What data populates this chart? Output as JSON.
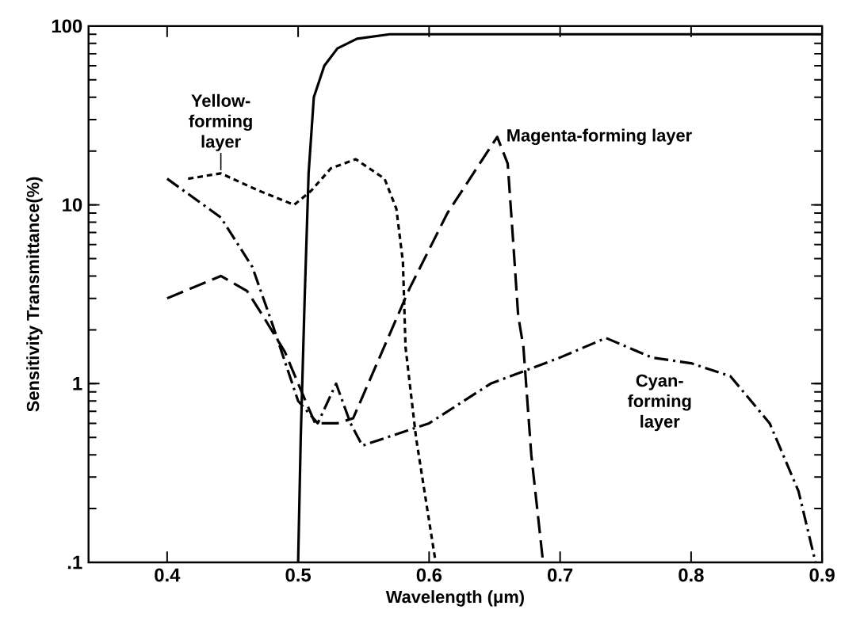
{
  "chart_data": {
    "type": "line",
    "xlabel": "Wavelength (μm)",
    "ylabel": "Sensitivity Transmittance(%)",
    "log": "y",
    "xlim": [
      0.34,
      0.9
    ],
    "ylim": [
      0.1,
      100
    ],
    "xticks": [
      0.4,
      0.5,
      0.6,
      0.7,
      0.8,
      0.9
    ],
    "yticks": [
      {
        "value": 0.1,
        "label": ".1"
      },
      1,
      10,
      100
    ],
    "grid": false,
    "legend": false,
    "marker": "none",
    "series": [
      {
        "color": "#000000",
        "line_style": "solid",
        "x": [
          0.5,
          0.502,
          0.505,
          0.508,
          0.512,
          0.52,
          0.53,
          0.545,
          0.57,
          0.6,
          0.9
        ],
        "values": [
          0.1,
          0.5,
          3,
          15,
          40,
          60,
          75,
          85,
          90,
          90,
          90
        ]
      },
      {
        "name": "Yellow-forming layer",
        "color": "#000000",
        "line_style": "dashed",
        "x": [
          0.416,
          0.441,
          0.47,
          0.497,
          0.51,
          0.525,
          0.544,
          0.566,
          0.575,
          0.58,
          0.582,
          0.59,
          0.599,
          0.605
        ],
        "values": [
          14,
          15,
          12,
          10,
          12,
          16,
          18,
          14,
          9.5,
          4.8,
          1.6,
          0.5,
          0.19,
          0.1
        ]
      },
      {
        "name": "Magenta-forming layer",
        "color": "#000000",
        "line_style": "longdashed",
        "x": [
          0.4,
          0.441,
          0.461,
          0.473,
          0.49,
          0.5,
          0.513,
          0.53,
          0.542,
          0.585,
          0.614,
          0.652,
          0.66,
          0.664,
          0.668,
          0.672,
          0.678,
          0.687
        ],
        "values": [
          3,
          4,
          3.3,
          2.4,
          1.5,
          1.0,
          0.6,
          0.6,
          0.64,
          3.4,
          9,
          24,
          17,
          6.5,
          2.4,
          1.6,
          0.4,
          0.1
        ]
      },
      {
        "name": "Cyan-forming layer",
        "color": "#000000",
        "line_style": "dashdot",
        "x": [
          0.4,
          0.441,
          0.465,
          0.479,
          0.5,
          0.515,
          0.529,
          0.54,
          0.549,
          0.6,
          0.647,
          0.7,
          0.735,
          0.77,
          0.8,
          0.83,
          0.86,
          0.882,
          0.895
        ],
        "values": [
          14,
          8.5,
          4.5,
          2.3,
          0.8,
          0.6,
          1.0,
          0.6,
          0.45,
          0.6,
          1.0,
          1.4,
          1.8,
          1.4,
          1.3,
          1.1,
          0.6,
          0.25,
          0.1
        ]
      }
    ]
  }
}
